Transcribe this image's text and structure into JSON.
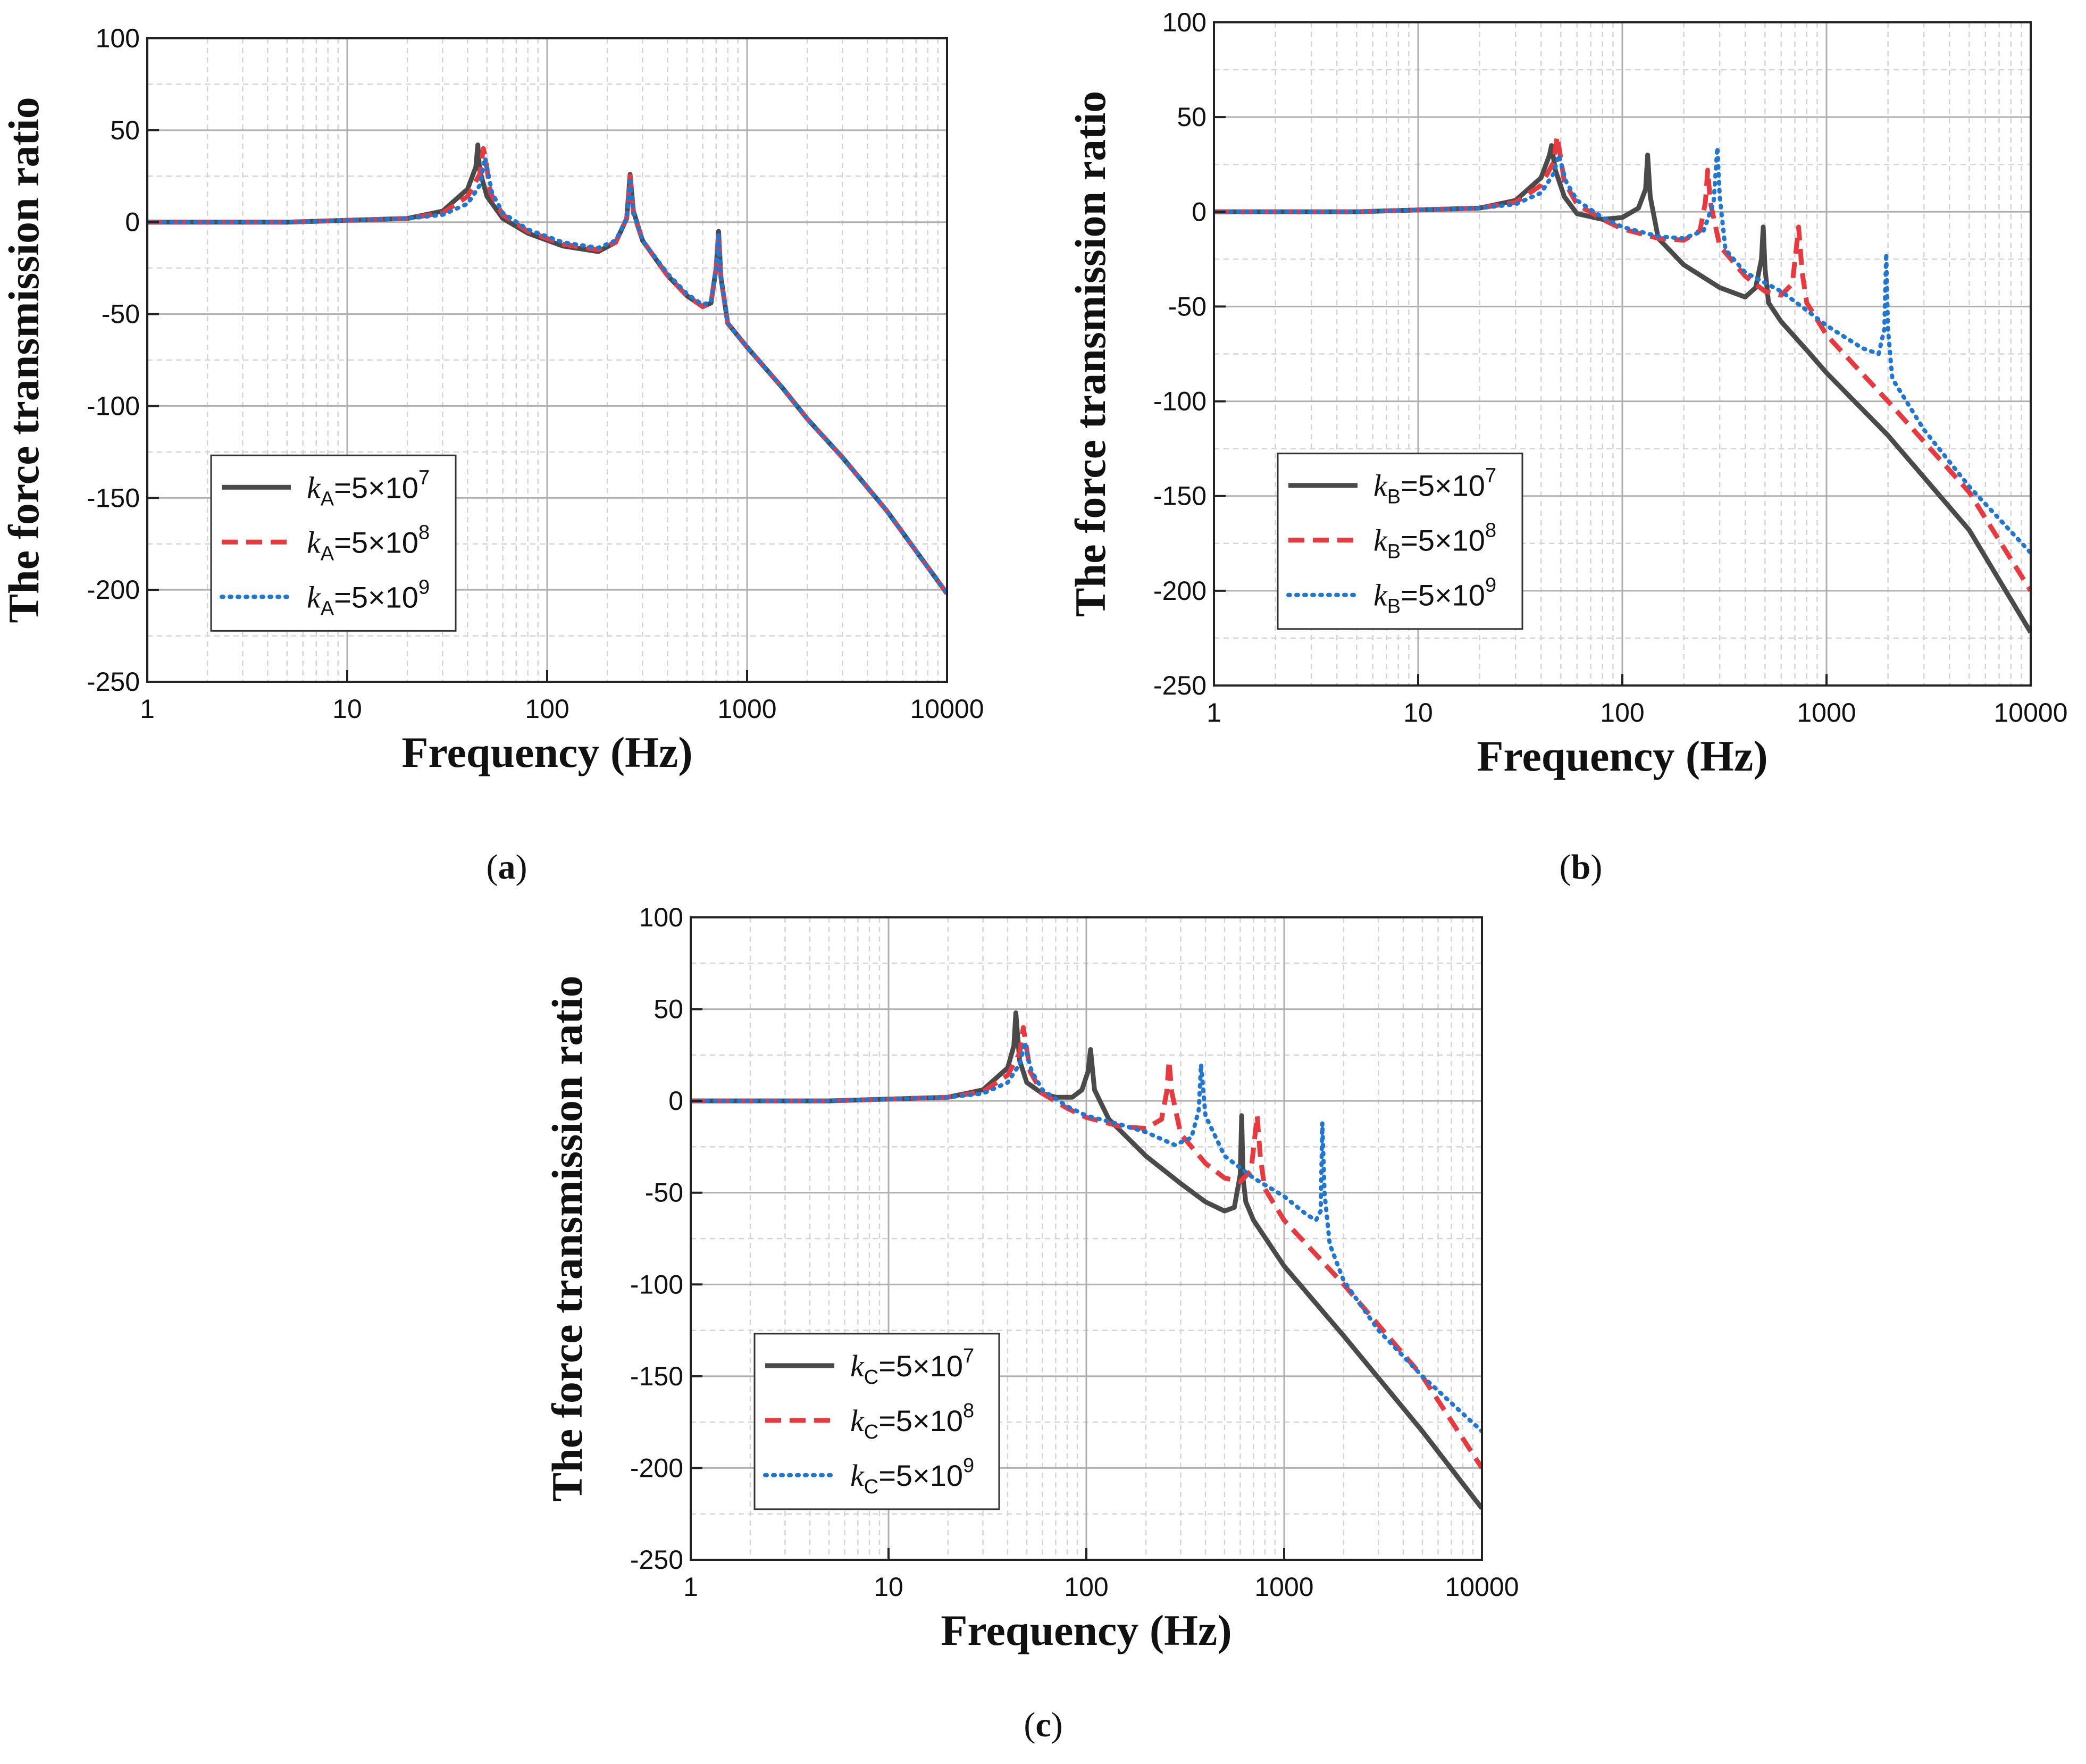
{
  "chart_data": [
    {
      "type": "line",
      "panel": "(a)",
      "caption_letter": "a",
      "xlabel": "Frequency (Hz)",
      "ylabel": "The force transmission ratio",
      "xscale": "log",
      "xlim": [
        1,
        10000
      ],
      "ylim": [
        -250,
        100
      ],
      "xticks": [
        1,
        10,
        100,
        1000,
        10000
      ],
      "xtick_labels": [
        "1",
        "10",
        "100",
        "1000",
        "10000"
      ],
      "yticks": [
        100,
        50,
        0,
        -50,
        -100,
        -150,
        -200,
        -250
      ],
      "ytick_labels": [
        "100",
        "50",
        "0",
        "-50",
        "-100",
        "-150",
        "-200",
        "-250"
      ],
      "grid": true,
      "legend_position": "lower-left",
      "series": [
        {
          "name": "kA=5×10^7",
          "k": "k",
          "sub": "A",
          "eq": "=5×10",
          "exp": "7",
          "color": "#4a4a4a",
          "style": "solid",
          "x": [
            1,
            5,
            10,
            20,
            30,
            40,
            44,
            45,
            46,
            50,
            60,
            80,
            120,
            180,
            220,
            250,
            260,
            270,
            300,
            400,
            500,
            600,
            660,
            700,
            720,
            740,
            800,
            1000,
            1500,
            2000,
            3000,
            5000,
            10000
          ],
          "y": [
            0,
            0,
            1,
            2,
            6,
            18,
            30,
            42,
            28,
            14,
            2,
            -6,
            -13,
            -16,
            -11,
            2,
            26,
            6,
            -10,
            -29,
            -40,
            -46,
            -44,
            -25,
            -5,
            -30,
            -55,
            -68,
            -90,
            -107,
            -128,
            -157,
            -202
          ]
        },
        {
          "name": "kA=5×10^8",
          "k": "k",
          "sub": "A",
          "eq": "=5×10",
          "exp": "8",
          "color": "#e8393f",
          "style": "dashed",
          "x": [
            1,
            5,
            10,
            20,
            30,
            40,
            46,
            48,
            49,
            52,
            60,
            80,
            120,
            180,
            220,
            250,
            260,
            270,
            300,
            400,
            500,
            600,
            660,
            700,
            720,
            740,
            800,
            1000,
            1500,
            2000,
            3000,
            5000,
            10000
          ],
          "y": [
            0,
            0,
            1,
            2,
            5,
            14,
            26,
            40,
            36,
            16,
            4,
            -5,
            -12,
            -15,
            -11,
            2,
            25,
            5,
            -10,
            -29,
            -40,
            -46,
            -44,
            -25,
            -6,
            -30,
            -55,
            -68,
            -90,
            -107,
            -128,
            -157,
            -202
          ]
        },
        {
          "name": "kA=5×10^9",
          "k": "k",
          "sub": "A",
          "eq": "=5×10",
          "exp": "9",
          "color": "#1f77d4",
          "style": "dotted",
          "x": [
            1,
            5,
            10,
            20,
            30,
            40,
            46,
            49,
            50,
            53,
            60,
            80,
            120,
            180,
            220,
            250,
            260,
            270,
            300,
            400,
            500,
            600,
            660,
            700,
            720,
            740,
            800,
            1000,
            1500,
            2000,
            3000,
            5000,
            10000
          ],
          "y": [
            0,
            0,
            1,
            2,
            4,
            10,
            20,
            35,
            30,
            16,
            5,
            -4,
            -11,
            -14,
            -10,
            2,
            24,
            5,
            -10,
            -28,
            -39,
            -45,
            -43,
            -26,
            -6,
            -30,
            -55,
            -68,
            -90,
            -107,
            -128,
            -157,
            -202
          ]
        }
      ]
    },
    {
      "type": "line",
      "panel": "(b)",
      "caption_letter": "b",
      "xlabel": "Frequency (Hz)",
      "ylabel": "The force transmission ratio",
      "xscale": "log",
      "xlim": [
        1,
        10000
      ],
      "ylim": [
        -250,
        100
      ],
      "xticks": [
        1,
        10,
        100,
        1000,
        10000
      ],
      "xtick_labels": [
        "1",
        "10",
        "100",
        "1000",
        "10000"
      ],
      "yticks": [
        100,
        50,
        0,
        -50,
        -100,
        -150,
        -200,
        -250
      ],
      "ytick_labels": [
        "100",
        "50",
        "0",
        "-50",
        "-100",
        "-150",
        "-200",
        "-250"
      ],
      "grid": true,
      "legend_position": "lower-left",
      "series": [
        {
          "name": "kB=5×10^7",
          "k": "k",
          "sub": "B",
          "eq": "=5×10",
          "exp": "7",
          "color": "#4a4a4a",
          "style": "solid",
          "x": [
            1,
            5,
            10,
            20,
            30,
            40,
            44,
            45,
            47,
            52,
            60,
            80,
            100,
            120,
            130,
            133,
            137,
            150,
            200,
            300,
            400,
            450,
            480,
            490,
            500,
            520,
            600,
            800,
            1000,
            2000,
            5000,
            10000
          ],
          "y": [
            0,
            0,
            1,
            2,
            6,
            18,
            30,
            35,
            22,
            8,
            -1,
            -4,
            -3,
            2,
            12,
            30,
            8,
            -14,
            -28,
            -40,
            -45,
            -40,
            -25,
            -8,
            -30,
            -48,
            -58,
            -73,
            -85,
            -118,
            -168,
            -222
          ]
        },
        {
          "name": "kB=5×10^8",
          "k": "k",
          "sub": "B",
          "eq": "=5×10",
          "exp": "8",
          "color": "#e8393f",
          "style": "dashed",
          "x": [
            1,
            5,
            10,
            20,
            30,
            40,
            46,
            48,
            49,
            52,
            60,
            80,
            100,
            150,
            200,
            240,
            255,
            262,
            270,
            300,
            400,
            500,
            600,
            680,
            710,
            730,
            760,
            800,
            1000,
            2000,
            5000,
            10000
          ],
          "y": [
            0,
            0,
            1,
            2,
            5,
            14,
            26,
            40,
            34,
            16,
            4,
            -4,
            -9,
            -14,
            -15,
            -10,
            5,
            22,
            5,
            -18,
            -34,
            -42,
            -44,
            -38,
            -20,
            -8,
            -32,
            -48,
            -65,
            -100,
            -148,
            -200
          ]
        },
        {
          "name": "kB=5×10^9",
          "k": "k",
          "sub": "B",
          "eq": "=5×10",
          "exp": "9",
          "color": "#1f77d4",
          "style": "dotted",
          "x": [
            1,
            5,
            10,
            20,
            30,
            40,
            46,
            49,
            50,
            53,
            60,
            80,
            100,
            150,
            200,
            250,
            280,
            292,
            300,
            320,
            400,
            600,
            800,
            1000,
            1500,
            1800,
            1920,
            1960,
            2000,
            2100,
            3000,
            5000,
            10000
          ],
          "y": [
            0,
            0,
            1,
            2,
            4,
            10,
            20,
            30,
            26,
            16,
            6,
            -3,
            -8,
            -13,
            -14,
            -10,
            5,
            34,
            8,
            -20,
            -32,
            -42,
            -52,
            -60,
            -72,
            -75,
            -62,
            -22,
            -62,
            -88,
            -115,
            -145,
            -180
          ]
        }
      ]
    },
    {
      "type": "line",
      "panel": "(c)",
      "caption_letter": "c",
      "xlabel": "Frequency (Hz)",
      "ylabel": "The force transmission ratio",
      "xscale": "log",
      "xlim": [
        1,
        10000
      ],
      "ylim": [
        -250,
        100
      ],
      "xticks": [
        1,
        10,
        100,
        1000,
        10000
      ],
      "xtick_labels": [
        "1",
        "10",
        "100",
        "1000",
        "10000"
      ],
      "yticks": [
        100,
        50,
        0,
        -50,
        -100,
        -150,
        -200,
        -250
      ],
      "ytick_labels": [
        "100",
        "50",
        "0",
        "-50",
        "-100",
        "-150",
        "-200",
        "-250"
      ],
      "grid": true,
      "legend_position": "lower-left",
      "series": [
        {
          "name": "kC=5×10^7",
          "k": "k",
          "sub": "C",
          "eq": "=5×10",
          "exp": "7",
          "color": "#4a4a4a",
          "style": "solid",
          "x": [
            1,
            5,
            10,
            20,
            30,
            40,
            43,
            44,
            46,
            50,
            60,
            70,
            85,
            95,
            102,
            105,
            110,
            130,
            200,
            300,
            400,
            500,
            560,
            600,
            610,
            620,
            640,
            700,
            1000,
            2000,
            5000,
            10000
          ],
          "y": [
            0,
            0,
            1,
            2,
            6,
            18,
            30,
            48,
            22,
            10,
            4,
            2,
            2,
            6,
            16,
            28,
            6,
            -10,
            -30,
            -45,
            -55,
            -60,
            -58,
            -40,
            -8,
            -42,
            -55,
            -65,
            -90,
            -128,
            -180,
            -222
          ]
        },
        {
          "name": "kC=5×10^8",
          "k": "k",
          "sub": "C",
          "eq": "=5×10",
          "exp": "8",
          "color": "#e8393f",
          "style": "dashed",
          "x": [
            1,
            5,
            10,
            20,
            30,
            40,
            46,
            48,
            49,
            52,
            60,
            80,
            100,
            150,
            200,
            240,
            255,
            262,
            270,
            300,
            400,
            500,
            600,
            680,
            710,
            730,
            760,
            800,
            1000,
            2000,
            5000,
            10000
          ],
          "y": [
            0,
            0,
            1,
            2,
            5,
            14,
            26,
            40,
            34,
            16,
            4,
            -4,
            -9,
            -14,
            -15,
            -10,
            5,
            22,
            5,
            -18,
            -34,
            -42,
            -44,
            -38,
            -20,
            -8,
            -32,
            -48,
            -65,
            -100,
            -150,
            -200
          ]
        },
        {
          "name": "kC=5×10^9",
          "k": "k",
          "sub": "C",
          "eq": "=5×10",
          "exp": "9",
          "color": "#1f77d4",
          "style": "dotted",
          "x": [
            1,
            5,
            10,
            20,
            30,
            40,
            46,
            49,
            50,
            53,
            60,
            80,
            100,
            150,
            200,
            280,
            340,
            370,
            380,
            400,
            500,
            700,
            1000,
            1300,
            1450,
            1530,
            1560,
            1600,
            1700,
            2000,
            3000,
            5000,
            10000
          ],
          "y": [
            0,
            0,
            1,
            2,
            4,
            10,
            20,
            32,
            26,
            16,
            6,
            -3,
            -8,
            -13,
            -17,
            -24,
            -20,
            -5,
            20,
            -8,
            -30,
            -42,
            -52,
            -62,
            -65,
            -60,
            -12,
            -50,
            -78,
            -98,
            -125,
            -150,
            -180
          ]
        }
      ]
    }
  ]
}
